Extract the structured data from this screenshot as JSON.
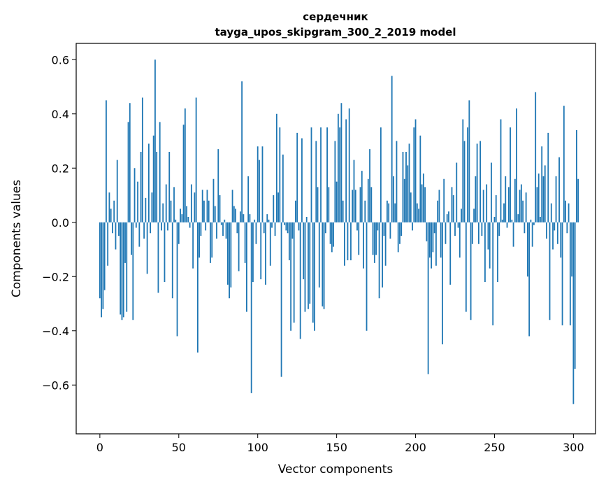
{
  "chart_data": {
    "type": "bar",
    "title_line1": "сердечник",
    "title_line2": "tayga_upos_skipgram_300_2_2019 model",
    "xlabel": "Vector components",
    "ylabel": "Components values",
    "xlim": [
      -15,
      314
    ],
    "ylim": [
      -0.78,
      0.66
    ],
    "xticks": [
      {
        "value": 0,
        "label": "0"
      },
      {
        "value": 50,
        "label": "50"
      },
      {
        "value": 100,
        "label": "100"
      },
      {
        "value": 150,
        "label": "150"
      },
      {
        "value": 200,
        "label": "200"
      },
      {
        "value": 250,
        "label": "250"
      },
      {
        "value": 300,
        "label": "300"
      }
    ],
    "yticks": [
      {
        "value": -0.6,
        "label": "−0.6"
      },
      {
        "value": -0.4,
        "label": "−0.4"
      },
      {
        "value": -0.2,
        "label": "−0.2"
      },
      {
        "value": 0.0,
        "label": "0.0"
      },
      {
        "value": 0.2,
        "label": "0.2"
      },
      {
        "value": 0.4,
        "label": "0.4"
      },
      {
        "value": 0.6,
        "label": "0.6"
      }
    ],
    "bar_color": "#1f77b4",
    "values": [
      -0.28,
      -0.35,
      -0.32,
      -0.25,
      0.45,
      -0.16,
      0.11,
      0.05,
      -0.04,
      0.08,
      -0.1,
      0.23,
      -0.05,
      -0.34,
      -0.36,
      -0.35,
      -0.15,
      -0.33,
      0.37,
      0.44,
      -0.12,
      -0.36,
      0.2,
      -0.02,
      0.15,
      -0.09,
      0.26,
      0.46,
      -0.06,
      0.09,
      -0.19,
      0.29,
      -0.04,
      0.11,
      0.32,
      0.6,
      0.26,
      -0.26,
      0.37,
      -0.03,
      0.07,
      -0.22,
      0.14,
      -0.03,
      0.26,
      0.08,
      -0.28,
      0.13,
      0.01,
      -0.42,
      -0.08,
      0.05,
      0.03,
      0.36,
      0.42,
      0.06,
      0.02,
      -0.02,
      0.14,
      -0.17,
      0.11,
      0.46,
      -0.48,
      -0.13,
      -0.05,
      0.12,
      0.08,
      -0.03,
      0.12,
      0.08,
      -0.15,
      -0.13,
      0.16,
      0.06,
      -0.06,
      0.27,
      0.1,
      -0.01,
      -0.05,
      0.01,
      -0.06,
      -0.23,
      -0.28,
      -0.24,
      0.12,
      0.06,
      0.05,
      -0.04,
      -0.18,
      0.04,
      0.52,
      0.03,
      -0.15,
      -0.33,
      0.17,
      0.03,
      -0.63,
      -0.22,
      0.01,
      -0.08,
      0.28,
      0.23,
      -0.21,
      0.28,
      -0.04,
      -0.23,
      0.03,
      0.01,
      -0.16,
      -0.02,
      0.1,
      -0.05,
      0.4,
      0.11,
      0.35,
      -0.57,
      0.25,
      -0.01,
      -0.03,
      -0.04,
      -0.14,
      -0.4,
      -0.06,
      -0.37,
      0.08,
      0.33,
      -0.03,
      -0.43,
      0.31,
      -0.21,
      -0.33,
      0.02,
      -0.32,
      -0.3,
      0.35,
      -0.37,
      -0.4,
      0.3,
      0.13,
      -0.24,
      0.35,
      -0.31,
      -0.32,
      -0.04,
      0.35,
      0.13,
      -0.08,
      -0.11,
      -0.09,
      0.3,
      0.15,
      0.4,
      0.35,
      0.44,
      0.08,
      -0.16,
      0.38,
      -0.14,
      0.42,
      -0.14,
      0.12,
      0.23,
      0.12,
      -0.03,
      -0.12,
      0.13,
      0.19,
      -0.17,
      0.08,
      -0.4,
      0.16,
      0.27,
      0.13,
      -0.12,
      -0.15,
      -0.12,
      -0.03,
      -0.28,
      0.35,
      -0.24,
      -0.05,
      -0.16,
      0.08,
      0.07,
      -0.06,
      0.54,
      0.17,
      0.07,
      0.3,
      -0.11,
      -0.08,
      -0.05,
      0.26,
      0.16,
      0.26,
      0.21,
      0.29,
      0.11,
      -0.03,
      0.35,
      0.38,
      0.07,
      0.05,
      0.32,
      0.14,
      0.18,
      0.13,
      -0.07,
      -0.56,
      -0.13,
      -0.17,
      -0.11,
      -0.04,
      -0.16,
      0.08,
      0.12,
      -0.13,
      -0.45,
      0.16,
      -0.08,
      0.03,
      0.04,
      -0.23,
      0.13,
      0.1,
      -0.05,
      0.22,
      -0.02,
      -0.13,
      0.05,
      0.38,
      0.3,
      -0.33,
      0.35,
      0.45,
      -0.36,
      -0.08,
      0.05,
      0.17,
      0.29,
      -0.08,
      0.3,
      -0.05,
      0.12,
      -0.22,
      0.14,
      -0.1,
      -0.17,
      0.22,
      -0.38,
      0.02,
      0.1,
      -0.22,
      -0.05,
      0.38,
      0.01,
      0.07,
      0.17,
      -0.02,
      0.13,
      0.35,
      0.01,
      -0.09,
      0.16,
      0.42,
      0.03,
      0.12,
      0.14,
      0.08,
      -0.04,
      0.11,
      -0.2,
      -0.42,
      0.01,
      -0.09,
      -0.01,
      0.48,
      0.13,
      0.18,
      0.02,
      0.28,
      0.17,
      0.21,
      -0.06,
      0.33,
      -0.36,
      0.07,
      -0.1,
      -0.03,
      0.17,
      -0.08,
      0.24,
      -0.13,
      -0.38,
      0.43,
      0.08,
      -0.04,
      0.07,
      -0.38,
      -0.2,
      -0.67,
      -0.54,
      0.34,
      0.16
    ]
  }
}
